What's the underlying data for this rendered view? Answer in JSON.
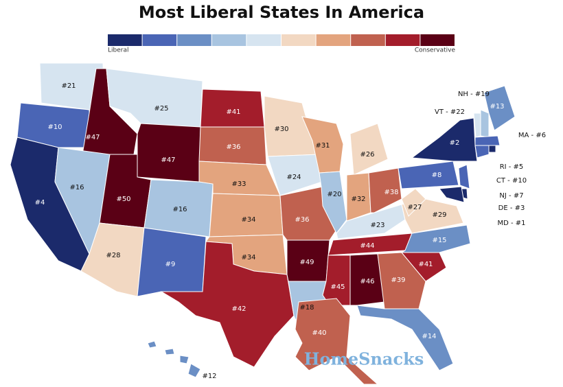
{
  "title": "Most Liberal States In America",
  "legend": {
    "colors": [
      "#1b2a6b",
      "#4a65b5",
      "#6b8fc5",
      "#a8c4e0",
      "#d6e4f0",
      "#f2d8c2",
      "#e3a47e",
      "#c0614f",
      "#a31d2b",
      "#5a0015"
    ],
    "low_label": "Liberal",
    "high_label": "Conservative"
  },
  "states": [
    {
      "label": "#21",
      "color": "#d6e4f0"
    },
    {
      "label": "#10",
      "color": "#4a65b5"
    },
    {
      "label": "#4",
      "color": "#1b2a6b"
    },
    {
      "label": "#47",
      "color": "#5a0015"
    },
    {
      "label": "#16",
      "color": "#a8c4e0"
    },
    {
      "label": "#25",
      "color": "#d6e4f0"
    },
    {
      "label": "#47",
      "color": "#5a0015"
    },
    {
      "label": "#50",
      "color": "#5a0015"
    },
    {
      "label": "#16",
      "color": "#a8c4e0"
    },
    {
      "label": "#28",
      "color": "#f2d8c2"
    },
    {
      "label": "#9",
      "color": "#4a65b5"
    },
    {
      "label": "#41",
      "color": "#a31d2b"
    },
    {
      "label": "#36",
      "color": "#c0614f"
    },
    {
      "label": "#33",
      "color": "#e3a47e"
    },
    {
      "label": "#34",
      "color": "#e3a47e"
    },
    {
      "label": "#34",
      "color": "#e3a47e"
    },
    {
      "label": "#42",
      "color": "#a31d2b"
    },
    {
      "label": "#30",
      "color": "#f2d8c2"
    },
    {
      "label": "#24",
      "color": "#d6e4f0"
    },
    {
      "label": "#36",
      "color": "#c0614f"
    },
    {
      "label": "#49",
      "color": "#5a0015"
    },
    {
      "label": "#18",
      "color": "#a8c4e0"
    },
    {
      "label": "#31",
      "color": "#e3a47e"
    },
    {
      "label": "#20",
      "color": "#a8c4e0"
    },
    {
      "label": "#26",
      "color": "#f2d8c2"
    },
    {
      "label": "#32",
      "color": "#e3a47e"
    },
    {
      "label": "#38",
      "color": "#c0614f"
    },
    {
      "label": "#23",
      "color": "#d6e4f0"
    },
    {
      "label": "#44",
      "color": "#a31d2b"
    },
    {
      "label": "#45",
      "color": "#a31d2b"
    },
    {
      "label": "#46",
      "color": "#5a0015"
    },
    {
      "label": "#39",
      "color": "#c0614f"
    },
    {
      "label": "#14",
      "color": "#6b8fc5"
    },
    {
      "label": "#41",
      "color": "#a31d2b"
    },
    {
      "label": "#15",
      "color": "#6b8fc5"
    },
    {
      "label": "#29",
      "color": "#f2d8c2"
    },
    {
      "label": "#27",
      "color": "#f2d8c2"
    },
    {
      "label": "#8",
      "color": "#4a65b5"
    },
    {
      "label": "#2",
      "color": "#1b2a6b"
    },
    {
      "label": "#13",
      "color": "#6b8fc5"
    },
    {
      "label": "#40",
      "color": "#c0614f"
    },
    {
      "label": "#12",
      "color": "#6b8fc5"
    }
  ],
  "small_states": [
    {
      "label": "VT - #22",
      "color": "#d6e4f0"
    },
    {
      "label": "NH - #19",
      "color": "#a8c4e0"
    },
    {
      "label": "MA - #6",
      "color": "#4a65b5"
    },
    {
      "label": "RI - #5",
      "color": "#1b2a6b"
    },
    {
      "label": "CT - #10",
      "color": "#4a65b5"
    },
    {
      "label": "NJ - #7",
      "color": "#4a65b5"
    },
    {
      "label": "DE - #3",
      "color": "#1b2a6b"
    },
    {
      "label": "MD - #1",
      "color": "#1b2a6b"
    }
  ],
  "watermark": "HomeSnacks"
}
